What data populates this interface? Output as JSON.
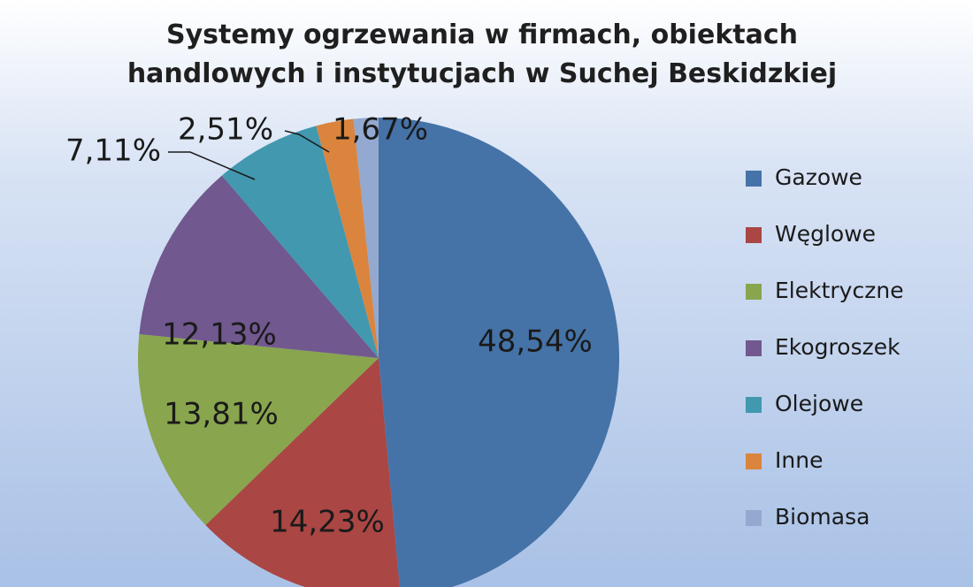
{
  "chart_data": {
    "type": "pie",
    "title_lines": [
      "Systemy ogrzewania w firmach, obiektach",
      "handlowych i instytucjach w Suchej Beskidzkiej"
    ],
    "slices": [
      {
        "name": "Gazowe",
        "value": 48.54,
        "label": "48,54%",
        "color": "#4573a7"
      },
      {
        "name": "Węglowe",
        "value": 14.23,
        "label": "14,23%",
        "color": "#aa4643"
      },
      {
        "name": "Elektryczne",
        "value": 13.81,
        "label": "13,81%",
        "color": "#89a54e"
      },
      {
        "name": "Ekogroszek",
        "value": 12.13,
        "label": "12,13%",
        "color": "#71588f"
      },
      {
        "name": "Olejowe",
        "value": 7.11,
        "label": "7,11%",
        "color": "#4198af"
      },
      {
        "name": "Inne",
        "value": 2.51,
        "label": "2,51%",
        "color": "#db843d"
      },
      {
        "name": "Biomasa",
        "value": 1.67,
        "label": "1,67%",
        "color": "#93a9cf"
      }
    ],
    "legend_position": "right"
  }
}
